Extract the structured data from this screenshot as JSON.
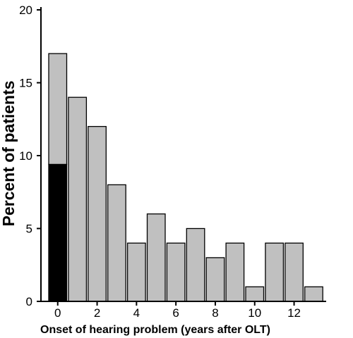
{
  "chart_data": {
    "type": "bar",
    "title": "",
    "xlabel": "Onset of hearing problem (years after OLT)",
    "ylabel": "Percent of patients",
    "x": [
      0,
      1,
      2,
      3,
      4,
      5,
      6,
      7,
      8,
      9,
      10,
      11,
      12,
      13
    ],
    "xticks": [
      0,
      2,
      4,
      6,
      8,
      10,
      12
    ],
    "yticks": [
      0,
      5,
      10,
      15,
      20
    ],
    "ylim": [
      0,
      20
    ],
    "grid": false,
    "legend": "none",
    "stacked": true,
    "series": [
      {
        "color": "#000000",
        "values": [
          9.4,
          0,
          0,
          0,
          0,
          0,
          0,
          0,
          0,
          0,
          0,
          0,
          0,
          0
        ]
      },
      {
        "color": "#c0c0c0",
        "values": [
          7.6,
          14,
          12,
          8,
          4,
          6,
          4,
          5,
          3,
          4,
          1,
          4,
          4,
          1
        ]
      }
    ]
  }
}
